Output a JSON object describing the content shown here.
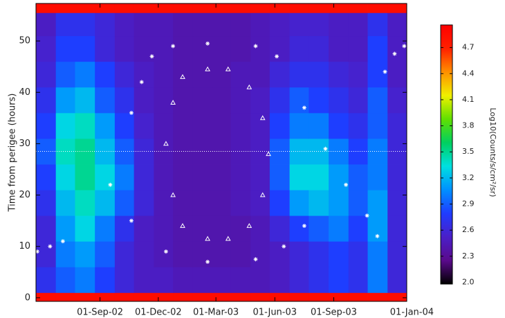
{
  "chart_data": {
    "type": "heatmap",
    "ylabel": "Time from perigee (hours)",
    "colorbar_label": "Log10(Counts/s/cm²/sr)",
    "xlim": [
      "2002-05-24",
      "2003-12-24"
    ],
    "xticks": [
      {
        "value": "2002-09-01",
        "label": "01-Sep-02"
      },
      {
        "value": "2002-12-01",
        "label": "01-Dec-02"
      },
      {
        "value": "2003-03-01",
        "label": "01-Mar-03"
      },
      {
        "value": "2003-06-01",
        "label": "01-Jun-03"
      },
      {
        "value": "2003-09-01",
        "label": "01-Sep-03"
      },
      {
        "value": "2004-01-01",
        "label": "01-Jan-04"
      }
    ],
    "ylim": [
      -0.7,
      57.3
    ],
    "yticks": [
      0,
      10,
      20,
      30,
      40,
      50
    ],
    "clim": [
      1.98,
      4.96
    ],
    "cticks": [
      {
        "value": 2,
        "label": "2.0"
      },
      2.3,
      2.6,
      2.9,
      3.2,
      3.5,
      3.8,
      4.1,
      4.4,
      4.7
    ],
    "colormap": [
      "#000000",
      "#5a0a8c",
      "#4a1fc8",
      "#1f3cff",
      "#0090ff",
      "#00e0e0",
      "#00d060",
      "#60e000",
      "#f0f000",
      "#ff9000",
      "#ff2000",
      "#ff0000"
    ],
    "xbins": [
      "2002-05-24",
      "2002-06-24",
      "2002-07-24",
      "2002-08-24",
      "2002-09-24",
      "2002-10-24",
      "2002-11-24",
      "2002-12-24",
      "2003-01-24",
      "2003-02-24",
      "2003-03-24",
      "2003-04-24",
      "2003-05-24",
      "2003-06-24",
      "2003-07-24",
      "2003-08-24",
      "2003-09-24",
      "2003-10-24",
      "2003-11-24",
      "2003-12-24"
    ],
    "ybins": [
      -0.7,
      1,
      6,
      11,
      16,
      21,
      26,
      31,
      36,
      41,
      46,
      51,
      55.5,
      57.3
    ],
    "z": [
      [
        4.85,
        4.85,
        4.85,
        4.85,
        4.85,
        4.85,
        4.85,
        4.85,
        4.85,
        4.85,
        4.85,
        4.85,
        4.85,
        4.85,
        4.85,
        4.85,
        4.85,
        4.85,
        4.85
      ],
      [
        2.7,
        2.9,
        3.0,
        2.8,
        2.6,
        2.5,
        2.5,
        2.45,
        2.45,
        2.45,
        2.45,
        2.45,
        2.5,
        2.6,
        2.7,
        2.8,
        2.7,
        3.0,
        2.6
      ],
      [
        2.6,
        3.0,
        3.1,
        2.9,
        2.6,
        2.5,
        2.45,
        2.4,
        2.4,
        2.4,
        2.4,
        2.45,
        2.5,
        2.6,
        2.7,
        2.8,
        2.7,
        3.0,
        2.6
      ],
      [
        2.6,
        3.1,
        3.3,
        3.0,
        2.7,
        2.5,
        2.45,
        2.4,
        2.4,
        2.4,
        2.4,
        2.45,
        2.6,
        2.8,
        2.9,
        3.0,
        2.8,
        3.1,
        2.6
      ],
      [
        2.7,
        3.2,
        3.4,
        3.2,
        2.9,
        2.6,
        2.45,
        2.4,
        2.4,
        2.4,
        2.45,
        2.5,
        2.8,
        3.1,
        3.2,
        3.1,
        2.9,
        3.1,
        2.6
      ],
      [
        2.8,
        3.3,
        3.5,
        3.3,
        3.0,
        2.6,
        2.45,
        2.4,
        2.4,
        2.4,
        2.45,
        2.5,
        2.9,
        3.3,
        3.3,
        3.1,
        2.9,
        3.0,
        2.6
      ],
      [
        2.9,
        3.4,
        3.5,
        3.2,
        2.9,
        2.6,
        2.45,
        2.4,
        2.4,
        2.4,
        2.45,
        2.5,
        2.9,
        3.2,
        3.2,
        3.0,
        2.8,
        3.0,
        2.6
      ],
      [
        2.8,
        3.3,
        3.4,
        3.1,
        2.8,
        2.55,
        2.45,
        2.4,
        2.4,
        2.4,
        2.45,
        2.5,
        2.8,
        3.0,
        3.0,
        2.8,
        2.7,
        2.9,
        2.6
      ],
      [
        2.7,
        3.1,
        3.2,
        2.9,
        2.7,
        2.5,
        2.45,
        2.4,
        2.4,
        2.4,
        2.45,
        2.5,
        2.7,
        2.9,
        2.8,
        2.7,
        2.6,
        2.9,
        2.55
      ],
      [
        2.6,
        2.9,
        3.0,
        2.8,
        2.6,
        2.5,
        2.45,
        2.4,
        2.4,
        2.4,
        2.45,
        2.45,
        2.6,
        2.7,
        2.7,
        2.6,
        2.55,
        2.8,
        2.5
      ],
      [
        2.55,
        2.8,
        2.8,
        2.6,
        2.5,
        2.45,
        2.45,
        2.4,
        2.4,
        2.4,
        2.4,
        2.45,
        2.5,
        2.6,
        2.6,
        2.5,
        2.5,
        2.8,
        2.5
      ],
      [
        2.5,
        2.7,
        2.7,
        2.6,
        2.5,
        2.45,
        2.45,
        2.4,
        2.4,
        2.4,
        2.4,
        2.45,
        2.5,
        2.55,
        2.55,
        2.5,
        2.5,
        2.7,
        2.5
      ],
      [
        4.85,
        4.85,
        4.85,
        4.85,
        4.85,
        4.85,
        4.85,
        4.85,
        4.85,
        4.85,
        4.85,
        4.85,
        4.85,
        4.85,
        4.85,
        4.85,
        4.85,
        4.85,
        4.85
      ]
    ],
    "reference_line": 28.5,
    "overlays": [
      {
        "color": "#ffffff",
        "marker": "asterisk",
        "x": [
          "2002-10-20",
          "2002-11-05",
          "2002-11-21",
          "2002-12-24",
          "2003-02-16",
          "2003-05-02",
          "2003-06-04",
          "2003-07-17",
          "2003-08-19",
          "2003-09-20",
          "2003-10-23",
          "2003-11-08",
          "2002-09-17",
          "2002-10-20",
          "2002-12-13",
          "2003-02-16",
          "2003-05-02",
          "2003-06-15",
          "2003-07-17",
          "2003-11-20",
          "2003-12-05",
          "2003-12-20",
          "2002-05-26",
          "2002-06-15",
          "2002-07-05"
        ],
        "y": [
          36,
          42,
          47,
          49,
          49.5,
          49,
          47,
          37,
          29,
          22,
          16,
          12,
          22,
          15,
          9,
          7,
          7.5,
          10,
          14,
          44,
          47.5,
          49,
          9,
          10,
          11
        ]
      },
      {
        "color": "#ffffff",
        "marker": "triangle",
        "x": [
          "2002-12-13",
          "2002-12-24",
          "2003-01-08",
          "2003-02-16",
          "2003-03-20",
          "2003-04-22",
          "2003-05-13",
          "2003-05-22",
          "2003-05-13",
          "2003-04-22",
          "2003-03-20",
          "2003-02-16",
          "2003-01-08",
          "2002-12-24"
        ],
        "y": [
          30,
          38,
          43,
          44.5,
          44.5,
          41,
          35,
          28,
          20,
          14,
          11.5,
          11.5,
          14,
          20
        ]
      }
    ]
  }
}
